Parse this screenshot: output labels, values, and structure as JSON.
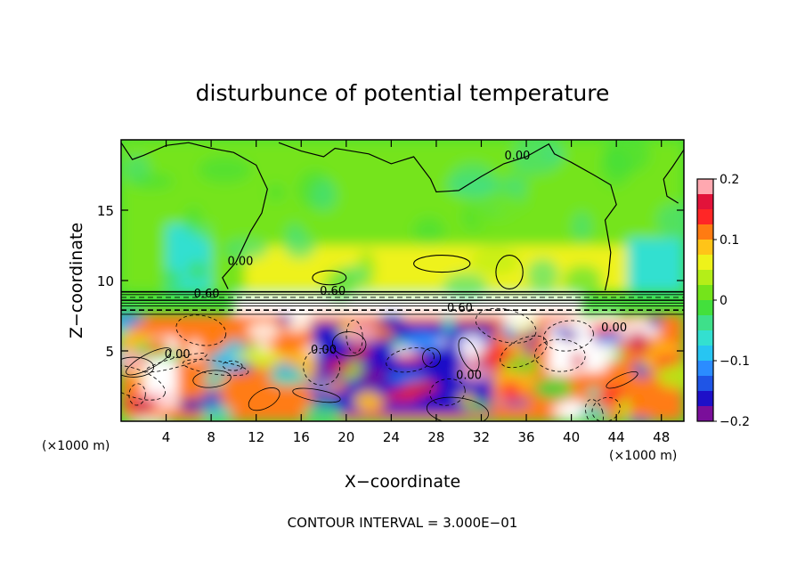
{
  "chart_data": {
    "type": "heatmap",
    "title": "disturbunce of potential temperature",
    "xlabel": "X−coordinate",
    "ylabel": "Z−coordinate",
    "x_unit_left": "(×1000 m)",
    "x_unit_right": "(×1000 m)",
    "footer": "CONTOUR INTERVAL = 3.000E−01",
    "xlim": [
      0,
      50
    ],
    "ylim": [
      0,
      20
    ],
    "x_ticks": [
      4,
      8,
      12,
      16,
      20,
      24,
      28,
      32,
      36,
      40,
      44,
      48
    ],
    "y_ticks": [
      5,
      10,
      15
    ],
    "x_tick_labels": [
      "4",
      "8",
      "12",
      "16",
      "20",
      "24",
      "28",
      "32",
      "36",
      "40",
      "44",
      "48"
    ],
    "y_tick_labels": [
      "5",
      "10",
      "15"
    ],
    "colorbar": {
      "min": -0.2,
      "max": 0.2,
      "tick_values": [
        0.2,
        0.1,
        0,
        -0.1,
        -0.2
      ],
      "tick_labels": [
        "0.2",
        "0.1",
        "0",
        "−0.1",
        "−0.2"
      ],
      "colors": [
        "#7a0f9a",
        "#1e10c8",
        "#1f55e6",
        "#2b8cff",
        "#27c5f2",
        "#33e0d0",
        "#3ee08a",
        "#43e03c",
        "#74e41b",
        "#b4ee18",
        "#eef21a",
        "#ffc418",
        "#ff7b12",
        "#ff2626",
        "#e2133a",
        "#ffa8b0"
      ]
    },
    "contour_labels": [
      {
        "text": "0.00",
        "x": 35.2,
        "z": 18.6
      },
      {
        "text": "0.00",
        "x": 10.6,
        "z": 11.1
      },
      {
        "text": "0.60",
        "x": 7.6,
        "z": 8.8
      },
      {
        "text": "0.60",
        "x": 18.8,
        "z": 9.0
      },
      {
        "text": "0.60",
        "x": 30.1,
        "z": 7.8
      },
      {
        "text": "0.00",
        "x": 43.8,
        "z": 6.4
      },
      {
        "text": "0.00",
        "x": 5.0,
        "z": 4.5
      },
      {
        "text": "0.00",
        "x": 18.0,
        "z": 4.8
      },
      {
        "text": "0.00",
        "x": 30.9,
        "z": 3.0
      }
    ],
    "field_regions": [
      {
        "name": "upper-layer",
        "x": [
          0,
          50
        ],
        "z": [
          9.2,
          20
        ],
        "value": 0.0
      },
      {
        "name": "upper-weak-positive",
        "x": [
          11,
          45
        ],
        "z": [
          9.2,
          12.5
        ],
        "value": 0.05
      },
      {
        "name": "upper-left-negative",
        "x": [
          4,
          8
        ],
        "z": [
          9.2,
          14
        ],
        "value": -0.07
      },
      {
        "name": "upper-right-negative",
        "x": [
          45,
          50
        ],
        "z": [
          9.2,
          13
        ],
        "value": -0.07
      },
      {
        "name": "stable-layer-white",
        "x": [
          10,
          41
        ],
        "z": [
          7.6,
          9.0
        ],
        "value": 0.6
      },
      {
        "name": "lower-mixed",
        "x": [
          0,
          50
        ],
        "z": [
          0,
          7.6
        ],
        "value": 0.12
      },
      {
        "name": "lower-negative-core",
        "x": [
          17,
          33
        ],
        "z": [
          0.5,
          7.0
        ],
        "value": -0.17
      },
      {
        "name": "lower-positive-right",
        "x": [
          38,
          43
        ],
        "z": [
          3.5,
          7.0
        ],
        "value": 0.4
      },
      {
        "name": "lower-positive-left",
        "x": [
          2,
          5
        ],
        "z": [
          1,
          6
        ],
        "value": 0.4
      }
    ]
  }
}
